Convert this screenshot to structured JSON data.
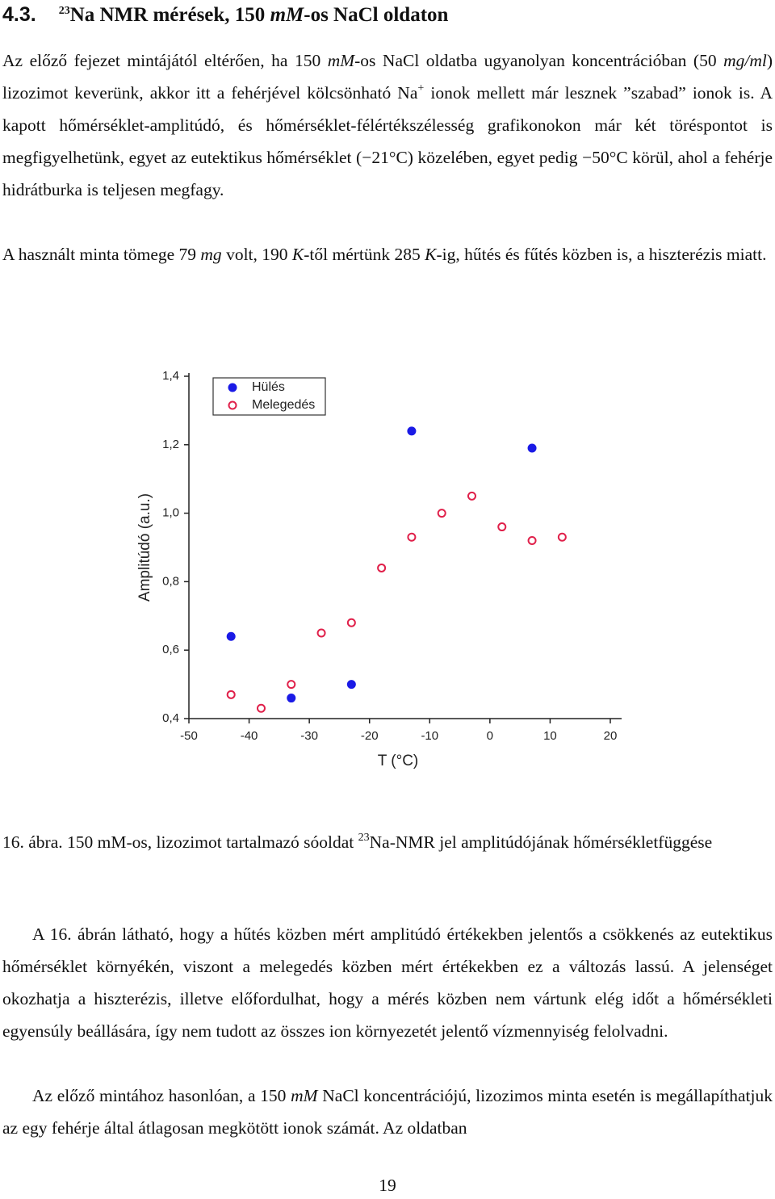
{
  "section": {
    "number": "4.3.",
    "title": [
      "23",
      "Na NMR mérések, 150 ",
      "mM",
      "-os NaCl oldaton"
    ]
  },
  "paragraphs": [
    [
      "Az előző fejezet mintájától eltérően, ha 150 ",
      "mM",
      "-os NaCl oldatba ugyanolyan koncentrációban (50 ",
      "mg/ml",
      ") lizozimot keverünk, akkor itt a fehérjével kölcsönható Na",
      "+",
      " ionok mellett már lesznek ”szabad” ionok is. A kapott hőmérséklet-amplitúdó, és hőmérséklet-félértékszélesség grafikonokon már két töréspontot is megfigyelhetünk, egyet az eutektikus hőmérséklet (−21°C) közelében, egyet pedig −50°C körül, ahol a fehérje hidrátburka is teljesen megfagy."
    ],
    [
      "A használt minta tömege 79 ",
      "mg",
      " volt, 190 ",
      "K",
      "-től mértünk 285 ",
      "K",
      "-ig, hűtés és fűtés közben is, a hiszterézis miatt."
    ]
  ],
  "chart_data": {
    "type": "scatter",
    "x_label": "T (°C)",
    "y_label": "Amplitúdó (a.u.)",
    "xlim": [
      -50,
      20
    ],
    "xticks": [
      -50,
      -40,
      -30,
      -20,
      -10,
      0,
      10,
      20
    ],
    "ylim": [
      0.4,
      1.4
    ],
    "yticks": [
      {
        "value": 0.4,
        "label": "0,4"
      },
      {
        "value": 0.6,
        "label": "0,6"
      },
      {
        "value": 0.8,
        "label": "0,8"
      },
      {
        "value": 1.0,
        "label": "1,0"
      },
      {
        "value": 1.2,
        "label": "1,2"
      },
      {
        "value": 1.4,
        "label": "1,4"
      }
    ],
    "legend": "upper left",
    "series": [
      {
        "name": "Hülés",
        "color": "#1a1ae6",
        "marker": "filled",
        "x": [
          -43,
          -33,
          -23,
          -13,
          7
        ],
        "values": [
          0.64,
          0.46,
          0.5,
          1.24,
          1.19
        ]
      },
      {
        "name": "Melegedés",
        "color": "#e0204a",
        "marker": "open",
        "x": [
          -43,
          -38,
          -33,
          -28,
          -23,
          -18,
          -13,
          -8,
          -3,
          2,
          7,
          12
        ],
        "values": [
          0.47,
          0.43,
          0.5,
          0.65,
          0.68,
          0.84,
          0.93,
          1.0,
          1.05,
          0.96,
          0.92,
          0.93
        ]
      }
    ]
  },
  "caption": [
    "16. ábra. 150 mM-os, lizozimot tartalmazó sóoldat ",
    "23",
    "Na-NMR jel amplitúdójának hőmérsékletfüggése"
  ],
  "paragraphs_after": [
    [
      "A 16. ábrán látható, hogy a hűtés közben mért amplitúdó értékekben jelentős a csökkenés az eutektikus hőmérséklet környékén, viszont a melegedés közben mért értékekben ez a változás lassú. A jelenséget okozhatja a hiszterézis, illetve előfordulhat, hogy a mérés közben nem vártunk elég időt a hőmérsékleti egyensúly beállására, így nem tudott az összes ion környezetét jelentő vízmennyiség felolvadni."
    ],
    [
      "Az előző mintához hasonlóan, a 150 ",
      "mM",
      " NaCl koncentrációjú, lizozimos minta esetén is megállapíthatjuk az egy fehérje által átlagosan megkötött ionok számát. Az oldatban"
    ]
  ],
  "page_number": "19"
}
